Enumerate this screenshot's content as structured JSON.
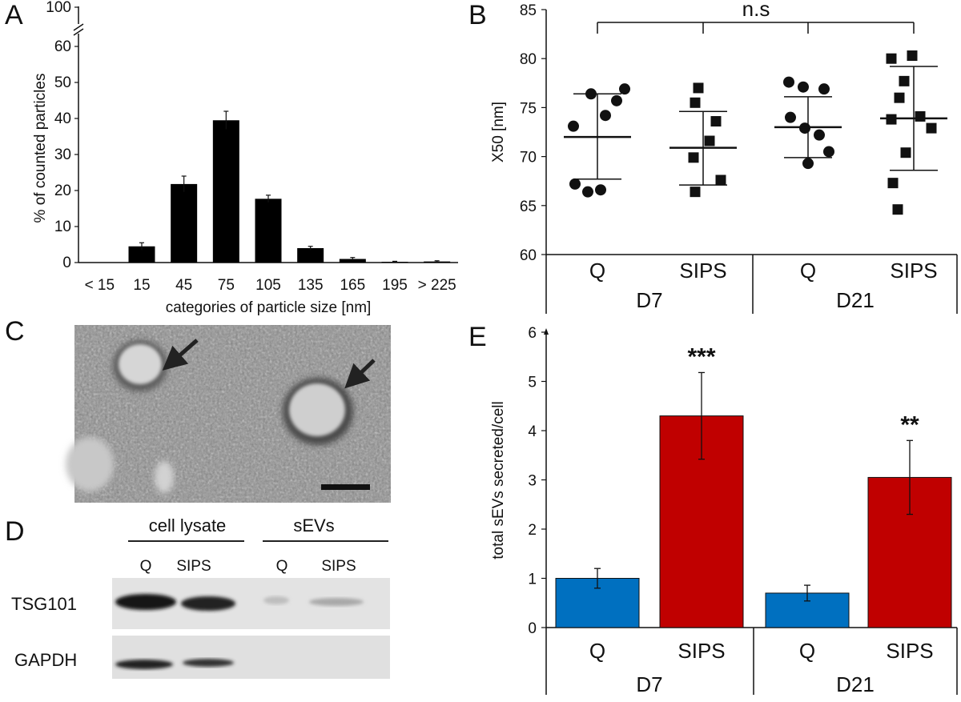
{
  "panels": {
    "a": "A",
    "b": "B",
    "c": "C",
    "d": "D",
    "e": "E"
  },
  "chart_data": [
    {
      "panel": "A",
      "type": "bar",
      "categories": [
        "< 15",
        "15",
        "45",
        "75",
        "105",
        "135",
        "165",
        "195",
        "> 225"
      ],
      "values": [
        0,
        4.5,
        21.8,
        39.5,
        17.7,
        4.0,
        1.0,
        0.2,
        0.3
      ],
      "errors": [
        0,
        1.0,
        2.2,
        2.5,
        1.0,
        0.5,
        0.4,
        0.15,
        0.2
      ],
      "xlabel": "categories of particle size [nm]",
      "ylabel": "% of counted particles",
      "yticks": [
        "0",
        "10",
        "20",
        "30",
        "40",
        "50",
        "60",
        "100"
      ],
      "ylim": [
        0,
        65
      ],
      "axis_break": true,
      "color": "#000000"
    },
    {
      "panel": "B",
      "type": "scatter",
      "groups": [
        "Q",
        "SIPS",
        "Q",
        "SIPS"
      ],
      "days": [
        "D7",
        "D21"
      ],
      "markers": [
        "circle",
        "square",
        "circle",
        "square"
      ],
      "points": [
        [
          76.9,
          76.4,
          75.7,
          74.2,
          73.1,
          67.2,
          66.4,
          66.6
        ],
        [
          77.0,
          75.5,
          73.6,
          71.6,
          69.9,
          67.6,
          66.4
        ],
        [
          77.6,
          77.1,
          76.9,
          74.0,
          72.9,
          72.2,
          70.5,
          69.3
        ],
        [
          80.0,
          80.3,
          77.7,
          76.0,
          74.1,
          73.8,
          72.9,
          70.4,
          67.3,
          64.6
        ]
      ],
      "means": [
        72.0,
        70.9,
        73.0,
        73.9
      ],
      "sd_low": [
        67.7,
        67.1,
        69.9,
        68.6
      ],
      "sd_high": [
        76.4,
        74.6,
        76.1,
        79.2
      ],
      "ylabel": "X50 [nm]",
      "yticks": [
        "60",
        "65",
        "70",
        "75",
        "80",
        "85"
      ],
      "ylim": [
        60,
        85
      ],
      "annotation": "n.s"
    },
    {
      "panel": "E",
      "type": "bar",
      "groups": [
        "Q",
        "SIPS",
        "Q",
        "SIPS"
      ],
      "days": [
        "D7",
        "D21"
      ],
      "values": [
        1.0,
        4.3,
        0.7,
        3.05
      ],
      "errors": [
        0.2,
        0.88,
        0.16,
        0.75
      ],
      "colors": [
        "#0070c0",
        "#c00000",
        "#0070c0",
        "#c00000"
      ],
      "significance": [
        "",
        "***",
        "",
        "**"
      ],
      "ylabel": "total sEVs secreted/cell",
      "yticks": [
        "0",
        "1",
        "2",
        "3",
        "4",
        "5",
        "6"
      ],
      "ylim": [
        0,
        6
      ]
    }
  ],
  "blot": {
    "headers": [
      "cell lysate",
      "sEVs"
    ],
    "lanes": [
      "Q",
      "SIPS",
      "Q",
      "SIPS"
    ],
    "rows": [
      "TSG101",
      "GAPDH"
    ]
  }
}
